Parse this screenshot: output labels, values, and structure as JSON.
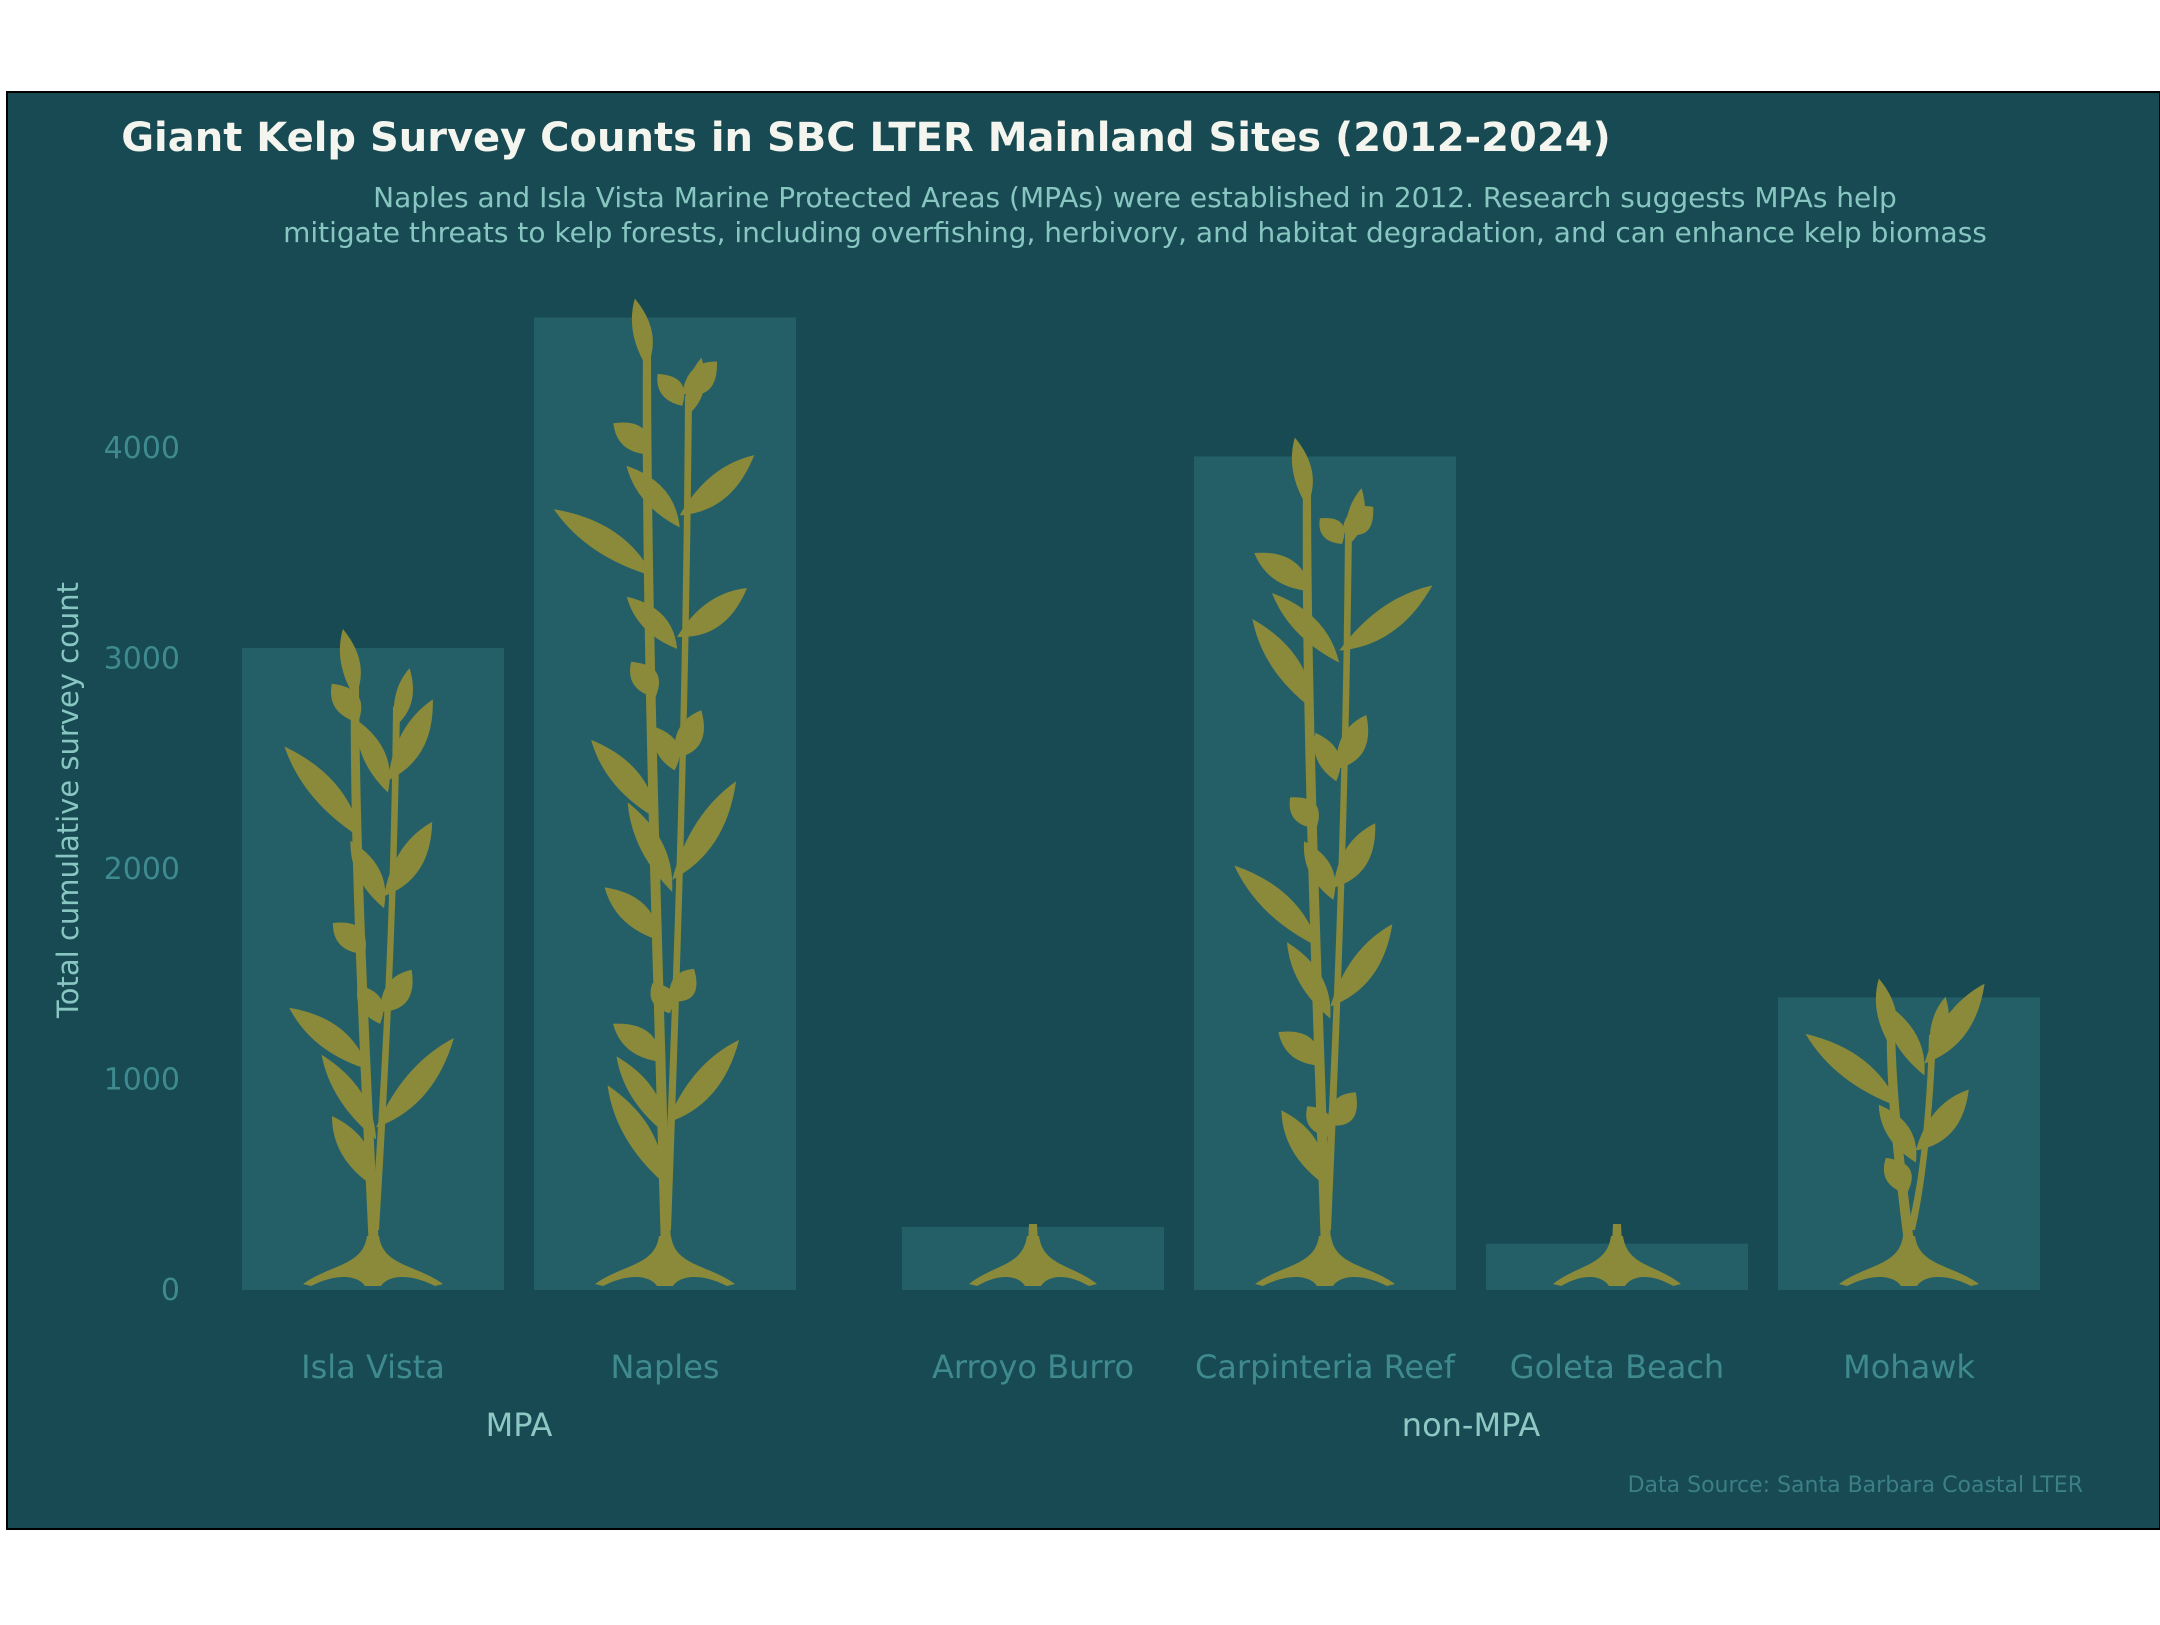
{
  "colors": {
    "background": "#174a52",
    "bar": "#245f68",
    "kelp": "#8a8a3a",
    "title": "#f3f5ee",
    "subtitle": "#88c6c2",
    "axis": "#3e8a8f",
    "group_label": "#8ec8c4",
    "source": "#3c7f86"
  },
  "chart_data": {
    "type": "bar",
    "title": "Giant Kelp Survey Counts in SBC LTER Mainland Sites (2012-2024)",
    "subtitle_lines": [
      "Naples and Isla Vista Marine Protected Areas (MPAs) were established in 2012. Research suggests MPAs help",
      "mitigate threats to kelp forests, including overfishing, herbivory, and habitat degradation, and can enhance kelp biomass"
    ],
    "ylabel": "Total cumulative survey count",
    "xlabel": "",
    "ylim": [
      0,
      4600
    ],
    "yticks": [
      0,
      1000,
      2000,
      3000,
      4000
    ],
    "grid": false,
    "categories": [
      "Isla Vista",
      "Naples",
      "Arroyo Burro",
      "Carpinteria Reef",
      "Goleta Beach",
      "Mohawk"
    ],
    "groups": [
      "MPA",
      "MPA",
      "non-MPA",
      "non-MPA",
      "non-MPA",
      "non-MPA"
    ],
    "group_labels": [
      "MPA",
      "non-MPA"
    ],
    "values": [
      3050,
      4620,
      300,
      3960,
      220,
      1390
    ],
    "source": "Data Source: Santa Barbara Coastal LTER"
  }
}
